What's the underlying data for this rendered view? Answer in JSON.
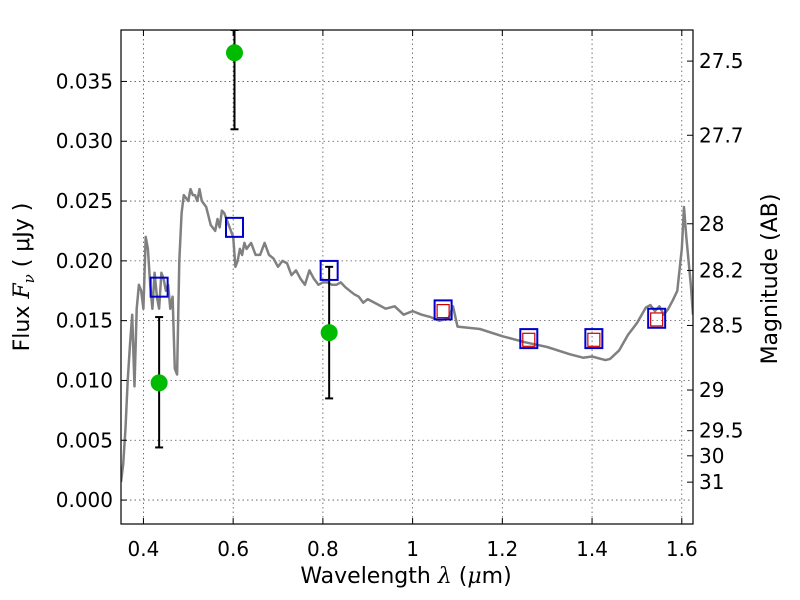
{
  "chart_data": {
    "type": "line",
    "title": "",
    "xlabel": {
      "prefix": "Wavelength  ",
      "symbol": "λ",
      "unit_open": " (",
      "unit_sym": "μ",
      "unit_close": "m)"
    },
    "ylabel": {
      "prefix": "Flux  ",
      "symbol": "F",
      "sub": "ν",
      "unit": "  ( μJy )"
    },
    "y2label": "Magnitude (AB)",
    "xlim": [
      0.35,
      1.625
    ],
    "ylim": [
      -0.002,
      0.0393
    ],
    "grid": true,
    "x_ticks": [
      0.4,
      0.6,
      0.8,
      1.0,
      1.2,
      1.4,
      1.6
    ],
    "x_tick_labels": [
      "0.4",
      "0.6",
      "0.8",
      "1",
      "1.2",
      "1.4",
      "1.6"
    ],
    "y_ticks": [
      0.0,
      0.005,
      0.01,
      0.015,
      0.02,
      0.025,
      0.03,
      0.035
    ],
    "y_tick_labels": [
      "0.000",
      "0.005",
      "0.010",
      "0.015",
      "0.020",
      "0.025",
      "0.030",
      "0.035"
    ],
    "y2_ticks": [
      {
        "label": "27.5",
        "flux": 0.0367
      },
      {
        "label": "27.7",
        "flux": 0.0305
      },
      {
        "label": "28",
        "flux": 0.0231
      },
      {
        "label": "28.2",
        "flux": 0.0192
      },
      {
        "label": "28.5",
        "flux": 0.0146
      },
      {
        "label": "29",
        "flux": 0.0092
      },
      {
        "label": "29.5",
        "flux": 0.0058
      },
      {
        "label": "30",
        "flux": 0.0037
      },
      {
        "label": "31",
        "flux": 0.0015
      }
    ],
    "series": [
      {
        "kind": "model_sed",
        "color": "#808080",
        "x": [
          0.35,
          0.355,
          0.36,
          0.365,
          0.37,
          0.375,
          0.38,
          0.385,
          0.39,
          0.395,
          0.4,
          0.405,
          0.41,
          0.415,
          0.42,
          0.425,
          0.43,
          0.435,
          0.44,
          0.445,
          0.45,
          0.455,
          0.46,
          0.465,
          0.47,
          0.475,
          0.48,
          0.485,
          0.49,
          0.5,
          0.505,
          0.51,
          0.515,
          0.52,
          0.525,
          0.53,
          0.54,
          0.55,
          0.56,
          0.565,
          0.57,
          0.575,
          0.58,
          0.59,
          0.6,
          0.605,
          0.61,
          0.615,
          0.62,
          0.625,
          0.63,
          0.64,
          0.65,
          0.66,
          0.67,
          0.68,
          0.69,
          0.7,
          0.71,
          0.72,
          0.73,
          0.74,
          0.75,
          0.76,
          0.77,
          0.78,
          0.79,
          0.8,
          0.81,
          0.82,
          0.83,
          0.84,
          0.85,
          0.86,
          0.87,
          0.88,
          0.89,
          0.9,
          0.92,
          0.94,
          0.96,
          0.98,
          1.0,
          1.02,
          1.04,
          1.06,
          1.08,
          1.09,
          1.1,
          1.15,
          1.2,
          1.25,
          1.3,
          1.35,
          1.38,
          1.4,
          1.42,
          1.43,
          1.44,
          1.46,
          1.48,
          1.5,
          1.52,
          1.53,
          1.54,
          1.55,
          1.56,
          1.57,
          1.58,
          1.59,
          1.6,
          1.605,
          1.61,
          1.62,
          1.625
        ],
        "y": [
          0.0015,
          0.003,
          0.006,
          0.01,
          0.013,
          0.0155,
          0.0095,
          0.016,
          0.018,
          0.0175,
          0.016,
          0.022,
          0.021,
          0.018,
          0.016,
          0.019,
          0.017,
          0.016,
          0.019,
          0.0185,
          0.0175,
          0.018,
          0.016,
          0.017,
          0.011,
          0.0105,
          0.02,
          0.024,
          0.0255,
          0.025,
          0.026,
          0.0255,
          0.0255,
          0.025,
          0.026,
          0.025,
          0.0245,
          0.023,
          0.0225,
          0.0235,
          0.0228,
          0.0242,
          0.024,
          0.023,
          0.022,
          0.0195,
          0.02,
          0.021,
          0.0205,
          0.0215,
          0.021,
          0.0215,
          0.0205,
          0.0205,
          0.0215,
          0.0205,
          0.0202,
          0.0195,
          0.02,
          0.0198,
          0.0188,
          0.0192,
          0.0185,
          0.018,
          0.0192,
          0.0185,
          0.018,
          0.0182,
          0.0182,
          0.018,
          0.018,
          0.0182,
          0.0178,
          0.0175,
          0.0172,
          0.017,
          0.0165,
          0.0168,
          0.0164,
          0.016,
          0.0162,
          0.0155,
          0.0158,
          0.0155,
          0.0153,
          0.015,
          0.0152,
          0.0162,
          0.0145,
          0.0143,
          0.0137,
          0.0132,
          0.0128,
          0.0122,
          0.0119,
          0.012,
          0.0118,
          0.0117,
          0.0118,
          0.0125,
          0.0138,
          0.0148,
          0.0161,
          0.0163,
          0.0158,
          0.0162,
          0.0155,
          0.016,
          0.0167,
          0.0175,
          0.021,
          0.0245,
          0.022,
          0.018,
          0.0155
        ]
      },
      {
        "kind": "model_photometry",
        "marker": "square",
        "color": "#0000cc",
        "x": [
          0.435,
          0.603,
          0.814,
          1.068,
          1.259,
          1.404,
          1.544
        ],
        "y": [
          0.0178,
          0.0228,
          0.0192,
          0.0159,
          0.0135,
          0.0135,
          0.0152
        ]
      },
      {
        "kind": "model_photometry_inner",
        "marker": "square",
        "color": "#cc0000",
        "x": [
          1.068,
          1.259,
          1.404,
          1.544
        ],
        "y": [
          0.0158,
          0.0134,
          0.0134,
          0.0151
        ]
      },
      {
        "kind": "observed",
        "marker": "circle",
        "color": "#00bb00",
        "x": [
          0.435,
          0.603,
          0.814
        ],
        "y": [
          0.0098,
          0.0374,
          0.014
        ],
        "yerr_low": [
          0.0044,
          0.031,
          0.0085
        ],
        "yerr_high": [
          0.0153,
          0.0393,
          0.0195
        ]
      }
    ]
  }
}
